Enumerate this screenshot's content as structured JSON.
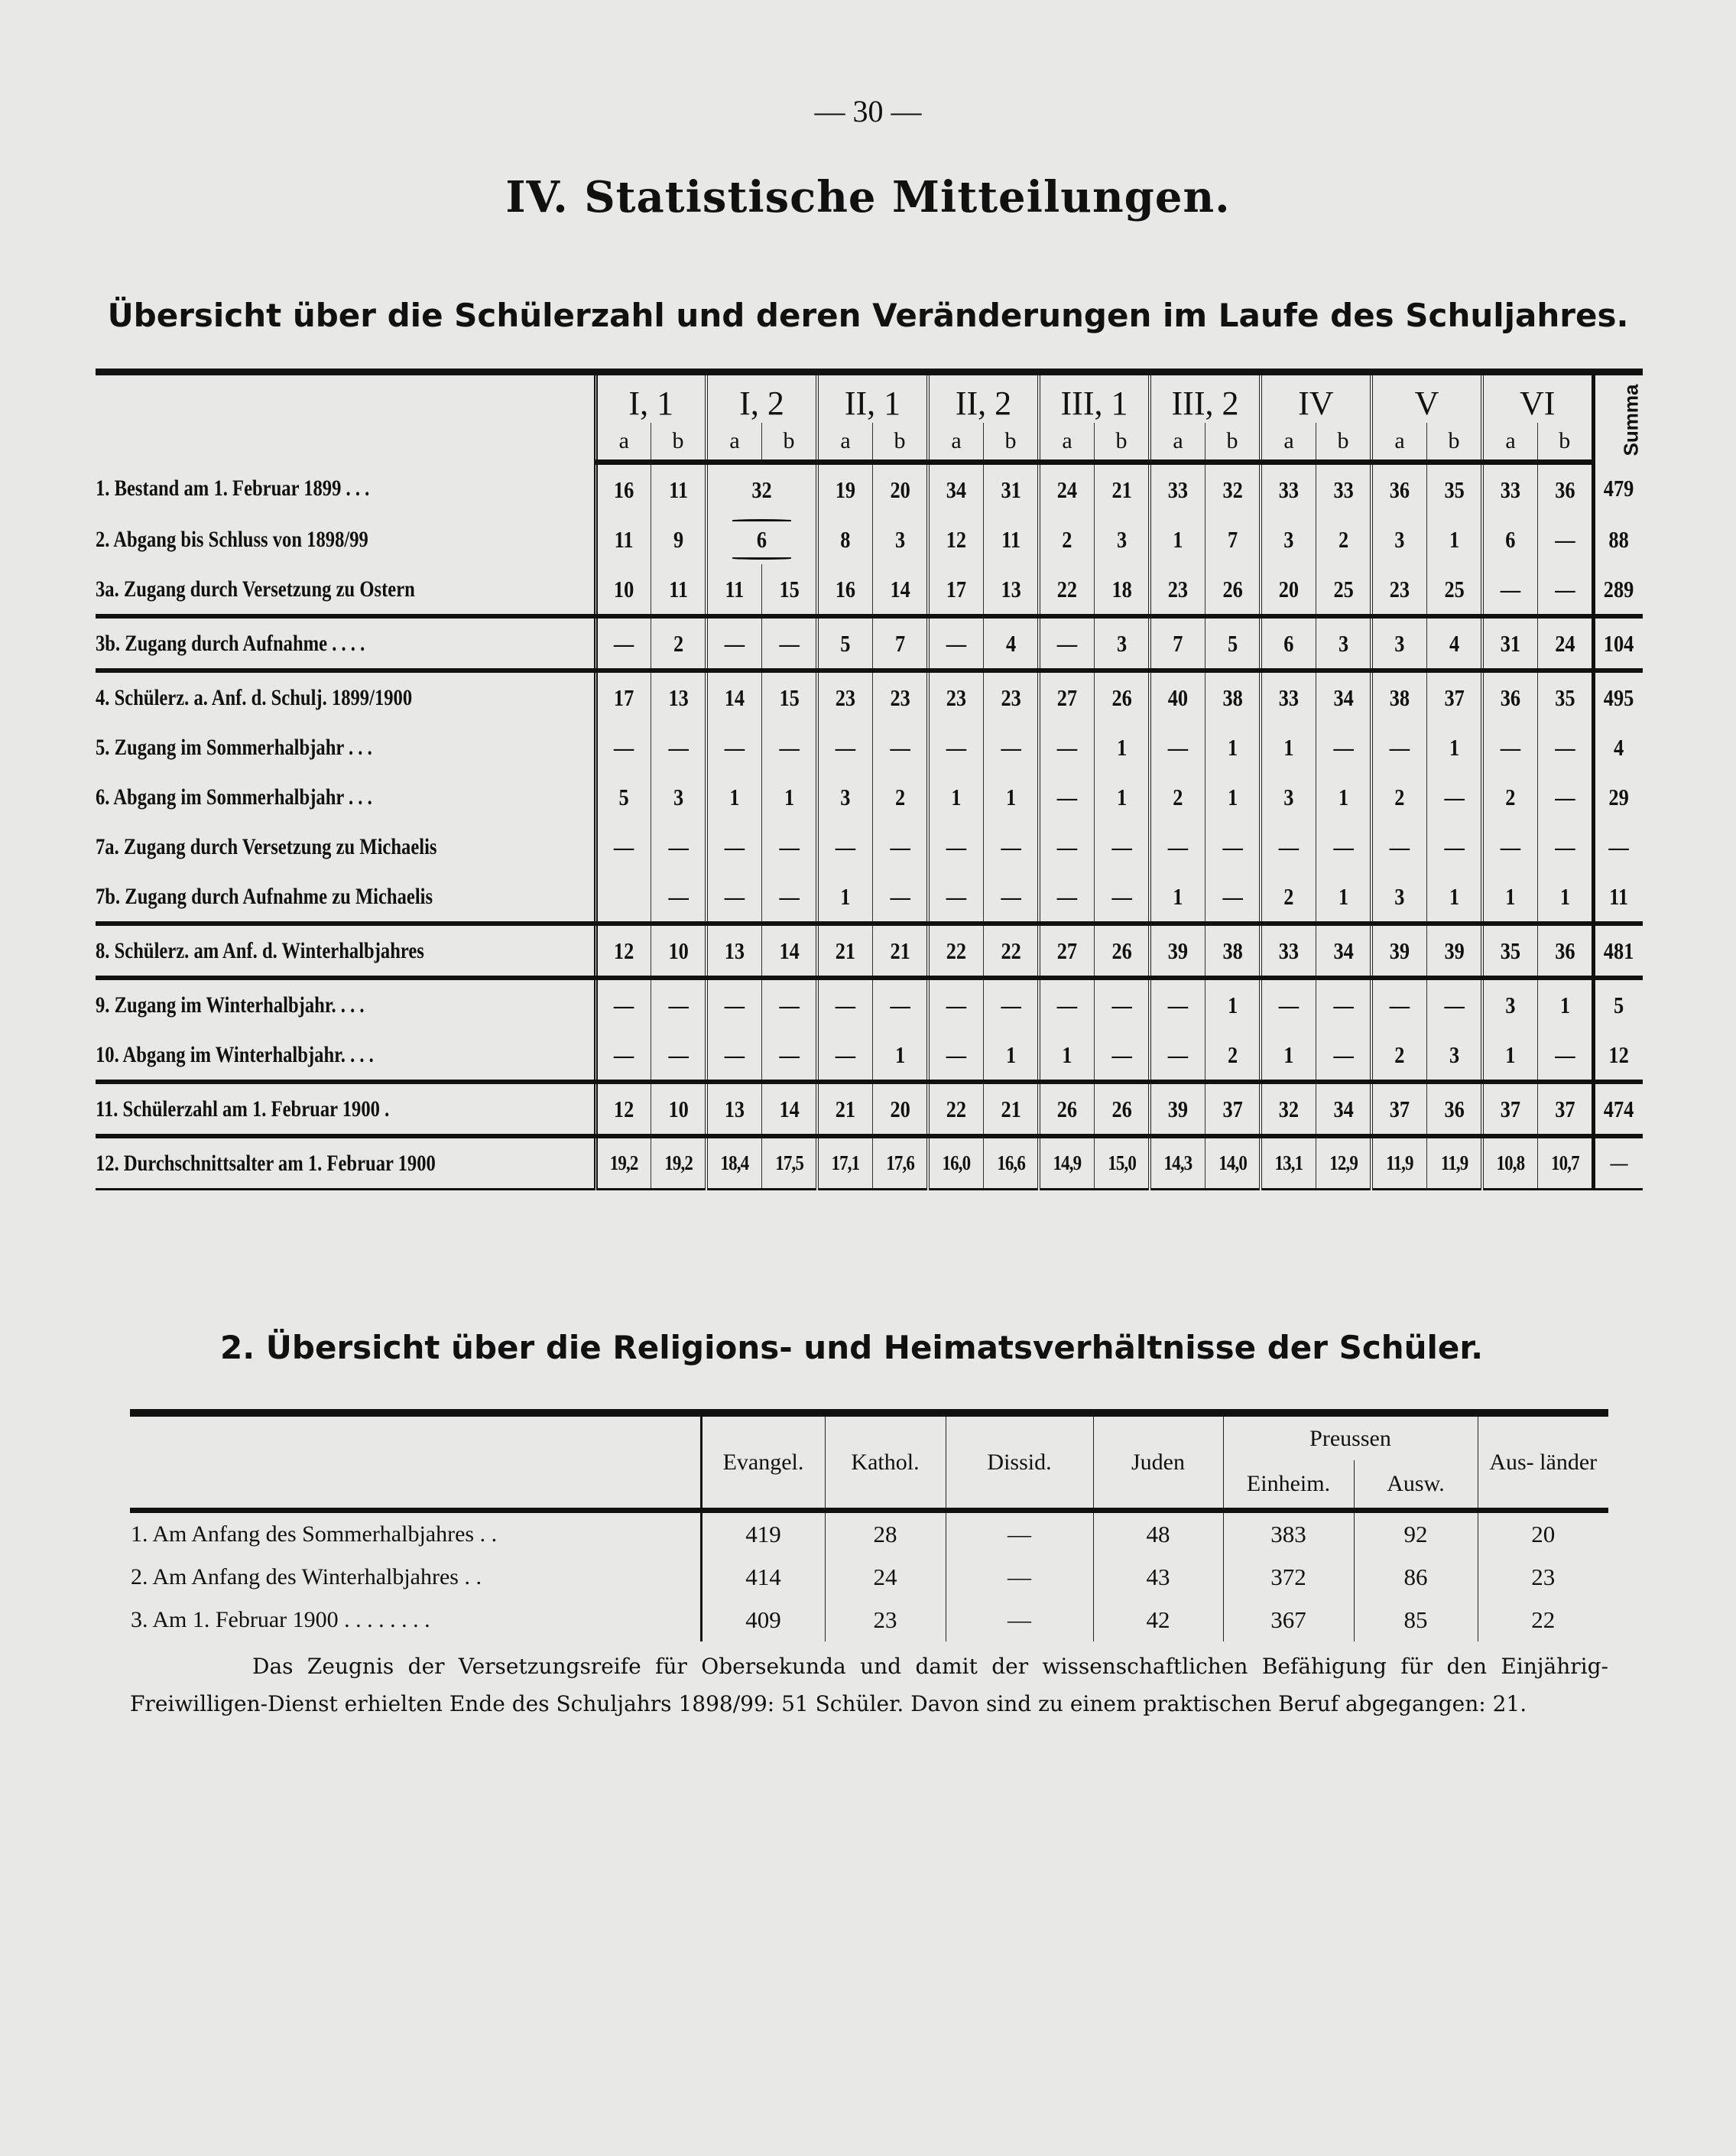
{
  "page_number": "— 30 —",
  "title": "IV. Statistische Mitteilungen.",
  "subtitle": "Übersicht über die Schülerzahl und deren Veränderungen im Laufe des Schuljahres.",
  "table1": {
    "groups": [
      "I, 1",
      "I, 2",
      "II, 1",
      "II, 2",
      "III, 1",
      "III, 2",
      "IV",
      "V",
      "VI"
    ],
    "sub": [
      "a",
      "b"
    ],
    "summa_label": "Summa",
    "rows": [
      {
        "label": "1. Bestand am 1. Februar 1899 . . .",
        "values": [
          "16",
          "11",
          "32",
          null,
          "19",
          "20",
          "34",
          "31",
          "24",
          "21",
          "33",
          "32",
          "33",
          "33",
          "36",
          "35",
          "33",
          "36",
          "479"
        ]
      },
      {
        "label": "2. Abgang bis Schluss von 1898/99",
        "values": [
          "11",
          "9",
          "6",
          null,
          "8",
          "3",
          "12",
          "11",
          "2",
          "3",
          "1",
          "7",
          "3",
          "2",
          "3",
          "1",
          "6",
          "—",
          "88"
        ]
      },
      {
        "label": "3a. Zugang durch Versetzung zu Ostern",
        "values": [
          "10",
          "11",
          "11",
          "15",
          "16",
          "14",
          "17",
          "13",
          "22",
          "18",
          "23",
          "26",
          "20",
          "25",
          "23",
          "25",
          "—",
          "—",
          "289"
        ]
      },
      {
        "label": "3b. Zugang durch Aufnahme . . . .",
        "values": [
          "—",
          "2",
          "—",
          "—",
          "5",
          "7",
          "—",
          "4",
          "—",
          "3",
          "7",
          "5",
          "6",
          "3",
          "3",
          "4",
          "31",
          "24",
          "104"
        ]
      },
      {
        "label": "4. Schülerz. a. Anf. d. Schulj. 1899/1900",
        "values": [
          "17",
          "13",
          "14",
          "15",
          "23",
          "23",
          "23",
          "23",
          "27",
          "26",
          "40",
          "38",
          "33",
          "34",
          "38",
          "37",
          "36",
          "35",
          "495"
        ]
      },
      {
        "label": "5. Zugang im Sommerhalbjahr . . .",
        "values": [
          "—",
          "—",
          "—",
          "—",
          "—",
          "—",
          "—",
          "—",
          "—",
          "1",
          "—",
          "1",
          "1",
          "—",
          "—",
          "1",
          "—",
          "—",
          "4"
        ]
      },
      {
        "label": "6. Abgang im Sommerhalbjahr . . .",
        "values": [
          "5",
          "3",
          "1",
          "1",
          "3",
          "2",
          "1",
          "1",
          "—",
          "1",
          "2",
          "1",
          "3",
          "1",
          "2",
          "—",
          "2",
          "—",
          "29"
        ]
      },
      {
        "label": "7a. Zugang durch Versetzung zu Michaelis",
        "values": [
          "—",
          "—",
          "—",
          "—",
          "—",
          "—",
          "—",
          "—",
          "—",
          "—",
          "—",
          "—",
          "—",
          "—",
          "—",
          "—",
          "—",
          "—",
          "—"
        ]
      },
      {
        "label": "7b. Zugang durch Aufnahme zu Michaelis",
        "values": [
          "",
          "—",
          "—",
          "—",
          "1",
          "—",
          "—",
          "—",
          "—",
          "—",
          "1",
          "—",
          "2",
          "1",
          "3",
          "1",
          "1",
          "1",
          "11"
        ]
      },
      {
        "label": "8. Schülerz. am Anf. d. Winterhalbjahres",
        "values": [
          "12",
          "10",
          "13",
          "14",
          "21",
          "21",
          "22",
          "22",
          "27",
          "26",
          "39",
          "38",
          "33",
          "34",
          "39",
          "39",
          "35",
          "36",
          "481"
        ]
      },
      {
        "label": "9. Zugang im Winterhalbjahr. . . .",
        "values": [
          "—",
          "—",
          "—",
          "—",
          "—",
          "—",
          "—",
          "—",
          "—",
          "—",
          "—",
          "1",
          "—",
          "—",
          "—",
          "—",
          "3",
          "1",
          "5"
        ]
      },
      {
        "label": "10. Abgang im Winterhalbjahr. . . .",
        "values": [
          "—",
          "—",
          "—",
          "—",
          "—",
          "1",
          "—",
          "1",
          "1",
          "—",
          "—",
          "2",
          "1",
          "—",
          "2",
          "3",
          "1",
          "—",
          "12"
        ]
      },
      {
        "label": "11. Schülerzahl am 1. Februar 1900 .",
        "values": [
          "12",
          "10",
          "13",
          "14",
          "21",
          "20",
          "22",
          "21",
          "26",
          "26",
          "39",
          "37",
          "32",
          "34",
          "37",
          "36",
          "37",
          "37",
          "474"
        ]
      },
      {
        "label": "12. Durchschnittsalter am 1. Februar 1900",
        "values": [
          "19,2",
          "19,2",
          "18,4",
          "17,5",
          "17,1",
          "17,6",
          "16,0",
          "16,6",
          "14,9",
          "15,0",
          "14,3",
          "14,0",
          "13,1",
          "12,9",
          "11,9",
          "11,9",
          "10,8",
          "10,7",
          "—"
        ]
      }
    ]
  },
  "section2_title": "2. Übersicht über die Religions- und Heimatsverhältnisse der Schüler.",
  "table2": {
    "headers": {
      "evangel": "Evangel.",
      "kathol": "Kathol.",
      "dissid": "Dissid.",
      "juden": "Juden",
      "preussen": "Preussen",
      "einheim": "Einheim.",
      "ausw": "Ausw.",
      "auslaender": "Aus- länder"
    },
    "rows": [
      {
        "label": "1. Am Anfang des Sommerhalbjahres . .",
        "values": [
          "419",
          "28",
          "—",
          "48",
          "383",
          "92",
          "20"
        ]
      },
      {
        "label": "2. Am Anfang des Winterhalbjahres . .",
        "values": [
          "414",
          "24",
          "—",
          "43",
          "372",
          "86",
          "23"
        ]
      },
      {
        "label": "3. Am 1. Februar 1900 . . . . . . . .",
        "values": [
          "409",
          "23",
          "—",
          "42",
          "367",
          "85",
          "22"
        ]
      }
    ]
  },
  "paragraph": "Das Zeugnis der Versetzungsreife für Obersekunda und damit der wissenschaftlichen Befähigung für den Einjährig-Freiwilligen-Dienst erhielten Ende des Schuljahrs 1898/99: 51 Schüler. Davon sind zu einem praktischen Beruf abgegangen: 21."
}
